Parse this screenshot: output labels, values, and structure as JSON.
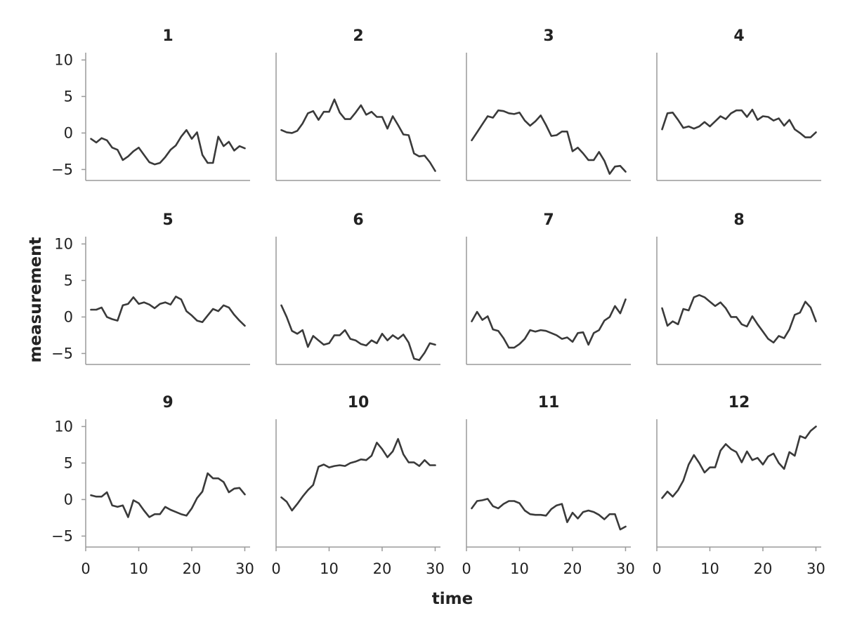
{
  "colors": {
    "line": "#3a3a3a",
    "axis": "#9a9a9a",
    "text": "#222222"
  },
  "chart_data": {
    "type": "line",
    "layout": "small-multiples 3x4, shared axes",
    "xlabel": "time",
    "ylabel": "measurement",
    "xlim": [
      0,
      31
    ],
    "ylim": [
      -6.5,
      11
    ],
    "xticks": [
      0,
      10,
      20,
      30
    ],
    "yticks": [
      -5,
      0,
      5,
      10
    ],
    "grid": false,
    "x": [
      1,
      2,
      3,
      4,
      5,
      6,
      7,
      8,
      9,
      10,
      11,
      12,
      13,
      14,
      15,
      16,
      17,
      18,
      19,
      20,
      21,
      22,
      23,
      24,
      25,
      26,
      27,
      28,
      29,
      30
    ],
    "panels": [
      {
        "title": "1",
        "values": [
          -0.8,
          -1.3,
          -0.7,
          -1.0,
          -2.0,
          -2.3,
          -3.7,
          -3.2,
          -2.5,
          -2.0,
          -3.0,
          -4.0,
          -4.3,
          -4.1,
          -3.3,
          -2.3,
          -1.7,
          -0.5,
          0.4,
          -0.8,
          0.1,
          -3.0,
          -4.1,
          -4.1,
          -0.5,
          -1.8,
          -1.2,
          -2.4,
          -1.8,
          -2.1
        ]
      },
      {
        "title": "2",
        "values": [
          0.4,
          0.1,
          0.0,
          0.3,
          1.3,
          2.7,
          3.0,
          1.8,
          2.9,
          2.9,
          4.6,
          2.8,
          1.9,
          1.9,
          2.8,
          3.8,
          2.5,
          2.9,
          2.2,
          2.2,
          0.6,
          2.3,
          1.1,
          -0.2,
          -0.3,
          -2.8,
          -3.2,
          -3.1,
          -4.0,
          -5.2
        ]
      },
      {
        "title": "3",
        "values": [
          -1.0,
          0.1,
          1.2,
          2.3,
          2.1,
          3.1,
          3.0,
          2.7,
          2.6,
          2.8,
          1.7,
          1.0,
          1.6,
          2.4,
          1.1,
          -0.4,
          -0.3,
          0.2,
          0.2,
          -2.5,
          -2.0,
          -2.8,
          -3.7,
          -3.7,
          -2.6,
          -3.8,
          -5.6,
          -4.6,
          -4.5,
          -5.3
        ]
      },
      {
        "title": "4",
        "values": [
          0.5,
          2.7,
          2.8,
          1.8,
          0.7,
          0.9,
          0.6,
          0.9,
          1.5,
          0.9,
          1.6,
          2.3,
          1.9,
          2.7,
          3.1,
          3.1,
          2.2,
          3.2,
          1.8,
          2.3,
          2.2,
          1.7,
          2.0,
          1.0,
          1.8,
          0.5,
          0.0,
          -0.6,
          -0.6,
          0.1
        ]
      },
      {
        "title": "5",
        "values": [
          1.0,
          1.0,
          1.3,
          0.0,
          -0.3,
          -0.5,
          1.6,
          1.8,
          2.7,
          1.8,
          2.0,
          1.7,
          1.2,
          1.8,
          2.0,
          1.7,
          2.8,
          2.4,
          0.8,
          0.2,
          -0.5,
          -0.7,
          0.2,
          1.1,
          0.8,
          1.6,
          1.3,
          0.3,
          -0.5,
          -1.2
        ]
      },
      {
        "title": "6",
        "values": [
          1.6,
          0.0,
          -1.9,
          -2.3,
          -1.8,
          -4.1,
          -2.6,
          -3.2,
          -3.8,
          -3.6,
          -2.5,
          -2.5,
          -1.8,
          -3.0,
          -3.2,
          -3.7,
          -3.9,
          -3.2,
          -3.6,
          -2.3,
          -3.2,
          -2.5,
          -3.0,
          -2.4,
          -3.5,
          -5.7,
          -5.9,
          -4.9,
          -3.6,
          -3.8
        ]
      },
      {
        "title": "7",
        "values": [
          -0.6,
          0.7,
          -0.4,
          0.1,
          -1.7,
          -1.9,
          -2.9,
          -4.2,
          -4.2,
          -3.7,
          -3.0,
          -1.8,
          -2.0,
          -1.8,
          -1.9,
          -2.2,
          -2.5,
          -3.0,
          -2.8,
          -3.4,
          -2.2,
          -2.1,
          -3.8,
          -2.2,
          -1.8,
          -0.5,
          0.0,
          1.5,
          0.5,
          2.4
        ]
      },
      {
        "title": "8",
        "values": [
          1.2,
          -1.2,
          -0.6,
          -1.0,
          1.1,
          0.9,
          2.7,
          3.0,
          2.7,
          2.1,
          1.5,
          2.0,
          1.2,
          0.0,
          0.0,
          -1.0,
          -1.3,
          0.1,
          -1.0,
          -2.0,
          -3.0,
          -3.5,
          -2.6,
          -2.9,
          -1.7,
          0.3,
          0.6,
          2.1,
          1.3,
          -0.6
        ]
      },
      {
        "title": "9",
        "values": [
          0.6,
          0.4,
          0.4,
          1.0,
          -0.8,
          -1.0,
          -0.8,
          -2.4,
          -0.1,
          -0.5,
          -1.5,
          -2.4,
          -2.0,
          -2.0,
          -1.0,
          -1.4,
          -1.7,
          -2.0,
          -2.2,
          -1.2,
          0.2,
          1.1,
          3.6,
          2.9,
          2.9,
          2.4,
          1.0,
          1.5,
          1.6,
          0.7
        ]
      },
      {
        "title": "10",
        "values": [
          0.3,
          -0.3,
          -1.5,
          -0.6,
          0.4,
          1.3,
          2.0,
          4.5,
          4.8,
          4.4,
          4.6,
          4.7,
          4.6,
          5.0,
          5.2,
          5.5,
          5.4,
          6.0,
          7.8,
          6.9,
          5.8,
          6.6,
          8.3,
          6.2,
          5.1,
          5.1,
          4.6,
          5.4,
          4.7,
          4.7
        ]
      },
      {
        "title": "11",
        "values": [
          -1.2,
          -0.2,
          -0.1,
          0.1,
          -0.9,
          -1.2,
          -0.6,
          -0.2,
          -0.2,
          -0.5,
          -1.5,
          -2.0,
          -2.1,
          -2.1,
          -2.2,
          -1.3,
          -0.8,
          -0.6,
          -3.1,
          -1.8,
          -2.6,
          -1.7,
          -1.5,
          -1.7,
          -2.1,
          -2.7,
          -2.0,
          -2.0,
          -4.1,
          -3.7
        ]
      },
      {
        "title": "12",
        "values": [
          0.2,
          1.1,
          0.4,
          1.3,
          2.6,
          4.8,
          6.1,
          5.0,
          3.7,
          4.4,
          4.4,
          6.7,
          7.6,
          6.9,
          6.5,
          5.1,
          6.6,
          5.4,
          5.7,
          4.8,
          5.9,
          6.3,
          5.0,
          4.2,
          6.5,
          6.0,
          8.7,
          8.4,
          9.4,
          10.0
        ]
      }
    ]
  }
}
